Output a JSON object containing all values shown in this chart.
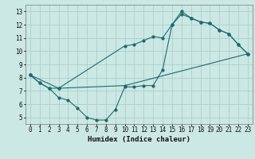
{
  "xlabel": "Humidex (Indice chaleur)",
  "bg_color": "#cce8e4",
  "grid_color": "#aacfcb",
  "line_color": "#1a6b6b",
  "xlim": [
    -0.5,
    23.5
  ],
  "ylim": [
    4.5,
    13.5
  ],
  "xticks": [
    0,
    1,
    2,
    3,
    4,
    5,
    6,
    7,
    8,
    9,
    10,
    11,
    12,
    13,
    14,
    15,
    16,
    17,
    18,
    19,
    20,
    21,
    22,
    23
  ],
  "yticks": [
    5,
    6,
    7,
    8,
    9,
    10,
    11,
    12,
    13
  ],
  "line1_x": [
    0,
    1,
    2,
    3,
    4,
    5,
    6,
    7,
    8,
    9,
    10,
    11,
    12,
    13,
    14,
    15,
    16,
    17,
    18,
    19,
    20,
    21,
    22,
    23
  ],
  "line1_y": [
    8.2,
    7.6,
    7.2,
    6.5,
    6.3,
    5.7,
    5.0,
    4.8,
    4.8,
    5.6,
    7.3,
    7.3,
    7.4,
    7.4,
    8.6,
    12.0,
    12.8,
    12.5,
    12.2,
    12.1,
    11.6,
    11.3,
    10.5,
    9.8
  ],
  "line2_x": [
    0,
    1,
    2,
    3,
    10,
    11,
    12,
    13,
    14,
    15,
    16,
    17,
    18,
    19,
    20,
    21,
    22,
    23
  ],
  "line2_y": [
    8.2,
    7.6,
    7.2,
    7.2,
    10.4,
    10.5,
    10.8,
    11.1,
    11.0,
    12.0,
    13.0,
    12.5,
    12.2,
    12.1,
    11.6,
    11.3,
    10.5,
    9.8
  ],
  "line3_x": [
    0,
    3,
    10,
    23
  ],
  "line3_y": [
    8.2,
    7.2,
    7.4,
    9.8
  ],
  "tick_fontsize": 5.5,
  "xlabel_fontsize": 6.5
}
